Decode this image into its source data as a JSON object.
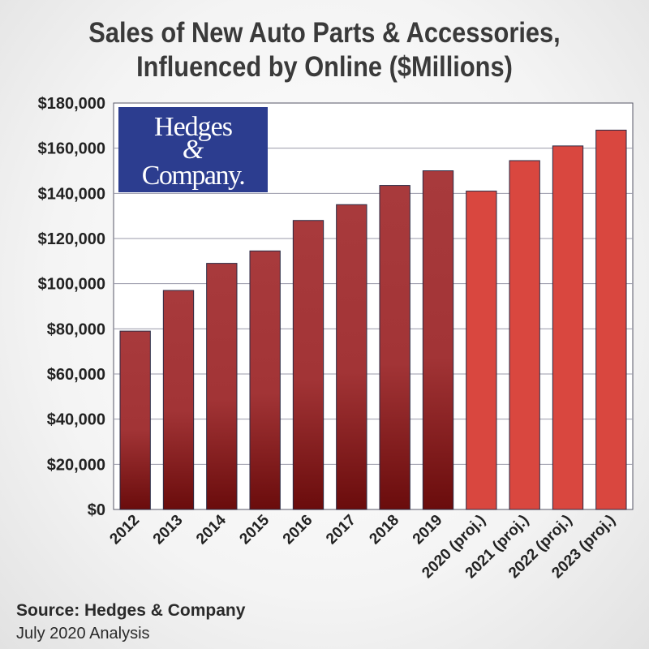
{
  "title_lines": [
    "Sales of New Auto Parts & Accessories,",
    "Influenced by Online ($Millions)"
  ],
  "logo": {
    "line1": "Hedges",
    "amp": "&",
    "line2": "Company."
  },
  "source": "Source: Hedges & Company",
  "analysis": "July 2020 Analysis",
  "colors": {
    "actual_dark": "#6e0f0f",
    "actual_mid": "#a83a3c",
    "projected": "#d9473f",
    "grid": "#9a9aaa",
    "logo_bg": "#2c3d8f"
  },
  "chart_data": {
    "type": "bar",
    "categories": [
      "2012",
      "2013",
      "2014",
      "2015",
      "2016",
      "2017",
      "2018",
      "2019",
      "2020 (proj.)",
      "2021 (proj.)",
      "2022 (proj.)",
      "2023 (proj.)"
    ],
    "values": [
      79000,
      97000,
      109000,
      114500,
      128000,
      135000,
      143500,
      150000,
      141000,
      154500,
      161000,
      168000
    ],
    "projected": [
      false,
      false,
      false,
      false,
      false,
      false,
      false,
      false,
      true,
      true,
      true,
      true
    ],
    "yticks": [
      "$0",
      "$20,000",
      "$40,000",
      "$60,000",
      "$80,000",
      "$100,000",
      "$120,000",
      "$140,000",
      "$160,000",
      "$180,000"
    ],
    "ylim": [
      0,
      180000
    ],
    "grid": true,
    "legend": "none"
  }
}
